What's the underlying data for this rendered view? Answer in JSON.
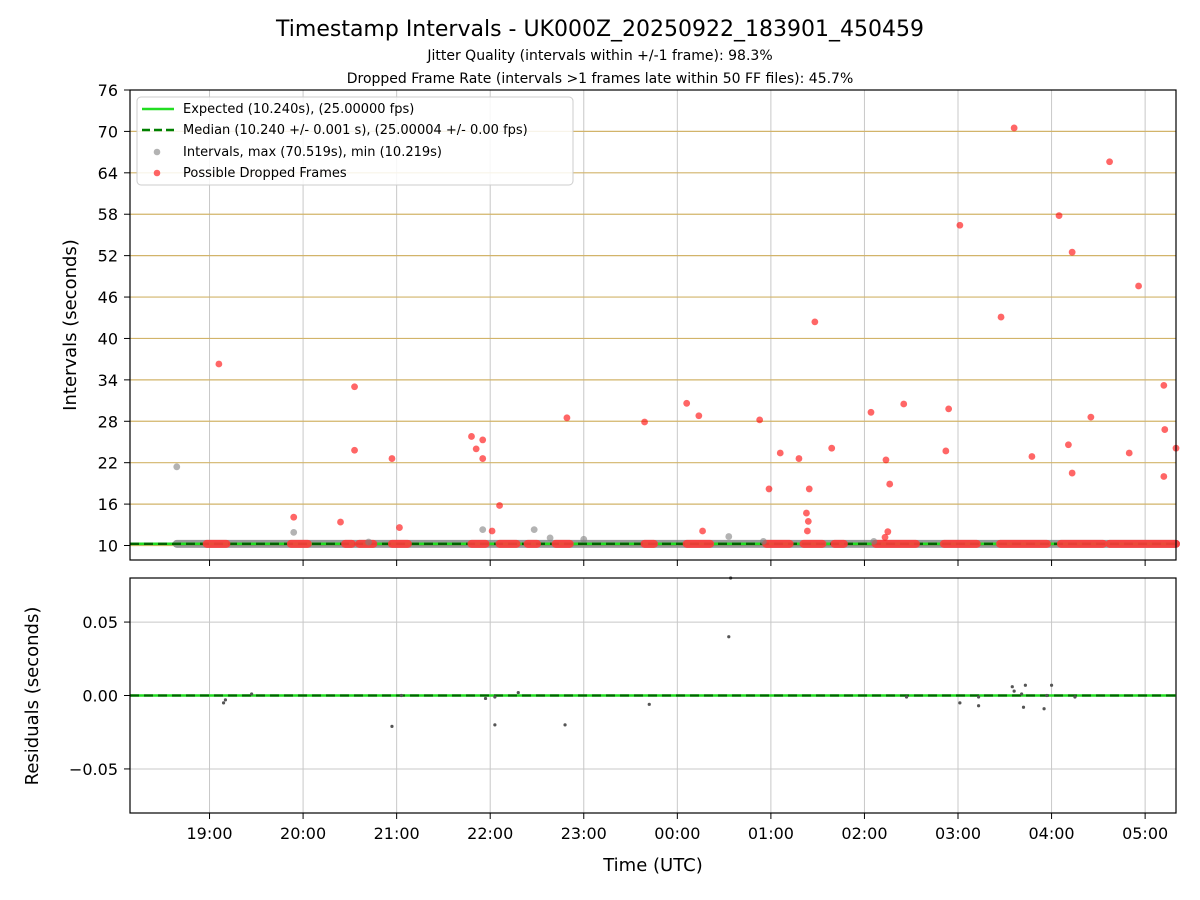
{
  "chart_data": {
    "type": "scatter",
    "title": "Timestamp Intervals - UK000Z_20250922_183901_450459",
    "subtitle_jitter": "Jitter Quality (intervals within +/-1 frame): 98.3%",
    "subtitle_dropped": "Dropped Frame Rate (intervals >1 frames late within 50 FF files): 45.7%",
    "xlabel": "Time (UTC)",
    "x_unit": "hours since 00:00 UTC (negative = previous day)",
    "xlim": [
      -5.85,
      5.33
    ],
    "x_ticks": [
      {
        "value": -5,
        "label": "19:00"
      },
      {
        "value": -4,
        "label": "20:00"
      },
      {
        "value": -3,
        "label": "21:00"
      },
      {
        "value": -2,
        "label": "22:00"
      },
      {
        "value": -1,
        "label": "23:00"
      },
      {
        "value": 0,
        "label": "00:00"
      },
      {
        "value": 1,
        "label": "01:00"
      },
      {
        "value": 2,
        "label": "02:00"
      },
      {
        "value": 3,
        "label": "03:00"
      },
      {
        "value": 4,
        "label": "04:00"
      },
      {
        "value": 5,
        "label": "05:00"
      }
    ],
    "top_panel": {
      "ylabel": "Intervals (seconds)",
      "ylim": [
        7.9,
        76
      ],
      "y_ticks": [
        10,
        16,
        22,
        28,
        34,
        40,
        46,
        52,
        58,
        64,
        70,
        76
      ],
      "hlines": [
        10,
        16,
        22,
        28,
        34,
        40,
        46,
        52,
        58,
        64,
        70
      ],
      "expected": 10.24,
      "median": 10.24,
      "legend": {
        "location": "upper-left",
        "expected": "Expected (10.240s), (25.00000 fps)",
        "median": "Median (10.240 +/- 0.001 s), (25.00004 +/- 0.00 fps)",
        "intervals": "Intervals, max (70.519s), min (10.219s)",
        "dropped": "Possible Dropped Frames"
      },
      "interval_band": [
        -5.35,
        5.33
      ],
      "intervals_gray": [
        [
          -5.35,
          21.4
        ],
        [
          -4.1,
          11.9
        ],
        [
          -2.08,
          12.3
        ],
        [
          -1.53,
          12.3
        ],
        [
          -1.36,
          11.1
        ],
        [
          -1.0,
          10.9
        ],
        [
          0.55,
          11.3
        ],
        [
          0.92,
          10.6
        ],
        [
          2.1,
          10.6
        ],
        [
          -3.3,
          10.5
        ]
      ],
      "dropped_clusters": [
        [
          -5.03,
          -4.82
        ],
        [
          -4.13,
          -3.95
        ],
        [
          -3.55,
          -3.48
        ],
        [
          -3.4,
          -3.25
        ],
        [
          -3.05,
          -2.88
        ],
        [
          -2.2,
          -2.05
        ],
        [
          -1.9,
          -1.72
        ],
        [
          -1.6,
          -1.5
        ],
        [
          -1.3,
          -1.15
        ],
        [
          -0.35,
          -0.25
        ],
        [
          0.1,
          0.35
        ],
        [
          0.95,
          1.2
        ],
        [
          1.35,
          1.55
        ],
        [
          1.68,
          1.78
        ],
        [
          2.12,
          2.55
        ],
        [
          2.85,
          3.2
        ],
        [
          3.45,
          3.95
        ],
        [
          4.1,
          4.55
        ],
        [
          4.62,
          5.33
        ]
      ],
      "dropped_frames": [
        [
          -4.9,
          36.3
        ],
        [
          -4.1,
          14.1
        ],
        [
          -3.6,
          13.4
        ],
        [
          -3.45,
          33.0
        ],
        [
          -3.45,
          23.8
        ],
        [
          -3.05,
          22.6
        ],
        [
          -2.97,
          12.6
        ],
        [
          -2.2,
          25.8
        ],
        [
          -2.15,
          24.0
        ],
        [
          -2.08,
          25.3
        ],
        [
          -2.08,
          22.6
        ],
        [
          -1.98,
          12.1
        ],
        [
          -1.9,
          15.8
        ],
        [
          -1.18,
          28.5
        ],
        [
          -0.35,
          27.9
        ],
        [
          0.1,
          30.6
        ],
        [
          0.23,
          28.8
        ],
        [
          0.27,
          12.1
        ],
        [
          0.88,
          28.2
        ],
        [
          0.98,
          18.2
        ],
        [
          1.1,
          23.4
        ],
        [
          1.3,
          22.6
        ],
        [
          1.38,
          14.7
        ],
        [
          1.39,
          12.1
        ],
        [
          1.4,
          13.5
        ],
        [
          1.41,
          18.2
        ],
        [
          1.47,
          42.4
        ],
        [
          1.65,
          24.1
        ],
        [
          2.07,
          29.3
        ],
        [
          2.23,
          22.4
        ],
        [
          2.27,
          18.9
        ],
        [
          2.25,
          12.0
        ],
        [
          2.22,
          11.2
        ],
        [
          2.42,
          30.5
        ],
        [
          2.87,
          23.7
        ],
        [
          2.9,
          29.8
        ],
        [
          3.02,
          56.4
        ],
        [
          3.46,
          43.1
        ],
        [
          3.6,
          70.5
        ],
        [
          3.79,
          22.9
        ],
        [
          4.08,
          57.8
        ],
        [
          4.18,
          24.6
        ],
        [
          4.22,
          52.5
        ],
        [
          4.22,
          20.5
        ],
        [
          4.42,
          28.6
        ],
        [
          4.62,
          65.6
        ],
        [
          4.83,
          23.4
        ],
        [
          4.93,
          47.6
        ],
        [
          5.2,
          33.2
        ],
        [
          5.2,
          20.0
        ],
        [
          5.21,
          26.8
        ],
        [
          5.33,
          24.1
        ]
      ]
    },
    "bottom_panel": {
      "ylabel": "Residuals (seconds)",
      "ylim": [
        -0.08,
        0.08
      ],
      "y_ticks": [
        {
          "value": 0.05,
          "label": "0.05"
        },
        {
          "value": 0.0,
          "label": "0.00"
        },
        {
          "value": -0.05,
          "label": "−0.05"
        }
      ],
      "residual_points": [
        [
          -4.85,
          -0.005
        ],
        [
          -4.83,
          -0.003
        ],
        [
          -4.55,
          0.001
        ],
        [
          -3.05,
          -0.021
        ],
        [
          -2.95,
          0.0
        ],
        [
          -2.05,
          -0.002
        ],
        [
          -1.95,
          -0.001
        ],
        [
          -1.95,
          -0.02
        ],
        [
          -1.7,
          0.002
        ],
        [
          -1.2,
          -0.02
        ],
        [
          -0.3,
          -0.006
        ],
        [
          0.55,
          0.04
        ],
        [
          0.57,
          0.08
        ],
        [
          2.45,
          -0.001
        ],
        [
          3.02,
          -0.005
        ],
        [
          3.22,
          -0.001
        ],
        [
          3.22,
          -0.007
        ],
        [
          3.58,
          0.006
        ],
        [
          3.6,
          0.003
        ],
        [
          3.68,
          0.001
        ],
        [
          3.7,
          -0.008
        ],
        [
          3.72,
          0.007
        ],
        [
          3.92,
          -0.009
        ],
        [
          3.95,
          0.0
        ],
        [
          4.0,
          0.007
        ],
        [
          4.25,
          -0.001
        ]
      ]
    }
  }
}
